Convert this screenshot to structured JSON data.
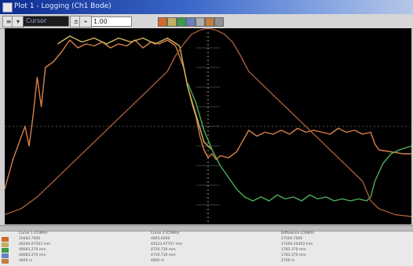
{
  "window": {
    "title": "Plot 1 - Logging (Ch1 Bode)"
  },
  "toolbar": {
    "select_value": "Cursor Values",
    "field_value": "1.00",
    "swatch_colors": [
      "#d06a2a",
      "#c3b060",
      "#3c9a4a",
      "#6b7fc0",
      "#b0b0b0",
      "#c08040",
      "#909090"
    ]
  },
  "plot": {
    "background": "#000000",
    "series": [
      {
        "color": "#d8804a",
        "points": [
          [
            0,
            18
          ],
          [
            2,
            33
          ],
          [
            5,
            50
          ],
          [
            6,
            40
          ],
          [
            7,
            56
          ],
          [
            8,
            75
          ],
          [
            9,
            60
          ],
          [
            10,
            80
          ],
          [
            12,
            83
          ],
          [
            14,
            88
          ],
          [
            16,
            94
          ],
          [
            18,
            90
          ],
          [
            20,
            92
          ],
          [
            22,
            91
          ],
          [
            24,
            93
          ],
          [
            26,
            90
          ],
          [
            28,
            92
          ],
          [
            30,
            91
          ],
          [
            32,
            94
          ],
          [
            34,
            90
          ],
          [
            36,
            93
          ],
          [
            38,
            92
          ],
          [
            40,
            94
          ],
          [
            42,
            91
          ],
          [
            44,
            80
          ],
          [
            45,
            70
          ],
          [
            46,
            62
          ],
          [
            47,
            55
          ],
          [
            48,
            45
          ],
          [
            49,
            38
          ],
          [
            50,
            34
          ],
          [
            51,
            36
          ],
          [
            52,
            33
          ],
          [
            53,
            35
          ],
          [
            55,
            34
          ],
          [
            57,
            37
          ],
          [
            60,
            48
          ],
          [
            62,
            45
          ],
          [
            64,
            47
          ],
          [
            66,
            46
          ],
          [
            68,
            48
          ],
          [
            70,
            46
          ],
          [
            72,
            49
          ],
          [
            74,
            47
          ],
          [
            76,
            48
          ],
          [
            78,
            47
          ],
          [
            80,
            46
          ],
          [
            82,
            49
          ],
          [
            84,
            47
          ],
          [
            86,
            48
          ],
          [
            88,
            46
          ],
          [
            90,
            47
          ],
          [
            91,
            41
          ],
          [
            92,
            38
          ],
          [
            95,
            37
          ],
          [
            98,
            36
          ],
          [
            100,
            36
          ]
        ]
      },
      {
        "color": "#d0b860",
        "points": [
          [
            13,
            92
          ],
          [
            16,
            96
          ],
          [
            19,
            93
          ],
          [
            22,
            95
          ],
          [
            25,
            92
          ],
          [
            28,
            95
          ],
          [
            31,
            93
          ],
          [
            34,
            95
          ],
          [
            37,
            92
          ],
          [
            40,
            95
          ],
          [
            43,
            91
          ],
          [
            45,
            70
          ],
          [
            47,
            56
          ],
          [
            49,
            42
          ],
          [
            51,
            38
          ]
        ]
      },
      {
        "color": "#4fae5a",
        "points": [
          [
            45,
            72
          ],
          [
            47,
            62
          ],
          [
            49,
            48
          ],
          [
            51,
            38
          ],
          [
            53,
            30
          ],
          [
            55,
            24
          ],
          [
            57,
            18
          ],
          [
            59,
            14
          ],
          [
            61,
            12
          ],
          [
            63,
            14
          ],
          [
            65,
            12
          ],
          [
            67,
            15
          ],
          [
            69,
            13
          ],
          [
            71,
            14
          ],
          [
            73,
            12
          ],
          [
            75,
            15
          ],
          [
            77,
            13
          ],
          [
            79,
            14
          ],
          [
            81,
            12
          ],
          [
            83,
            13
          ],
          [
            85,
            12
          ],
          [
            87,
            13
          ],
          [
            89,
            12
          ],
          [
            90,
            14
          ],
          [
            91,
            22
          ],
          [
            93,
            31
          ],
          [
            95,
            36
          ],
          [
            97,
            38
          ],
          [
            100,
            40
          ]
        ]
      },
      {
        "color": "#a45a3a",
        "points": [
          [
            0,
            5
          ],
          [
            4,
            8
          ],
          [
            8,
            14
          ],
          [
            12,
            22
          ],
          [
            16,
            30
          ],
          [
            20,
            38
          ],
          [
            24,
            46
          ],
          [
            28,
            54
          ],
          [
            32,
            62
          ],
          [
            36,
            70
          ],
          [
            40,
            78
          ],
          [
            42,
            86
          ],
          [
            44,
            92
          ],
          [
            46,
            97
          ],
          [
            48,
            99
          ],
          [
            50,
            100
          ],
          [
            52,
            99
          ],
          [
            54,
            97
          ],
          [
            56,
            93
          ],
          [
            58,
            86
          ],
          [
            60,
            78
          ],
          [
            64,
            70
          ],
          [
            68,
            62
          ],
          [
            72,
            54
          ],
          [
            76,
            46
          ],
          [
            80,
            38
          ],
          [
            84,
            30
          ],
          [
            88,
            22
          ],
          [
            90,
            12
          ],
          [
            92,
            8
          ],
          [
            96,
            5
          ],
          [
            100,
            4
          ]
        ]
      }
    ]
  },
  "legend": {
    "headers": [
      "Curve 1 (ChM/m",
      "Curve 2 (ChM/m",
      "Difference (ChM/m"
    ],
    "rows": [
      {
        "color": "#d06a2a",
        "cells": [
          "20483.7000",
          "4803.6000",
          "27500.7000"
        ]
      },
      {
        "color": "#c3b060",
        "cells": [
          "48200.07503 mm",
          "44523.97707 mm",
          "27400.20303 mm"
        ]
      },
      {
        "color": "#3c9a4a",
        "cells": [
          "48083.270 mm",
          "4720.730 mm",
          "1783.370 mm"
        ]
      },
      {
        "color": "#6b7fc0",
        "cells": [
          "48083.270 mm",
          "4720.730 mm",
          "1783.370 mm"
        ]
      },
      {
        "color": "#c08040",
        "cells": [
          "4800 m",
          "4800 m",
          "2700 m"
        ]
      }
    ]
  }
}
